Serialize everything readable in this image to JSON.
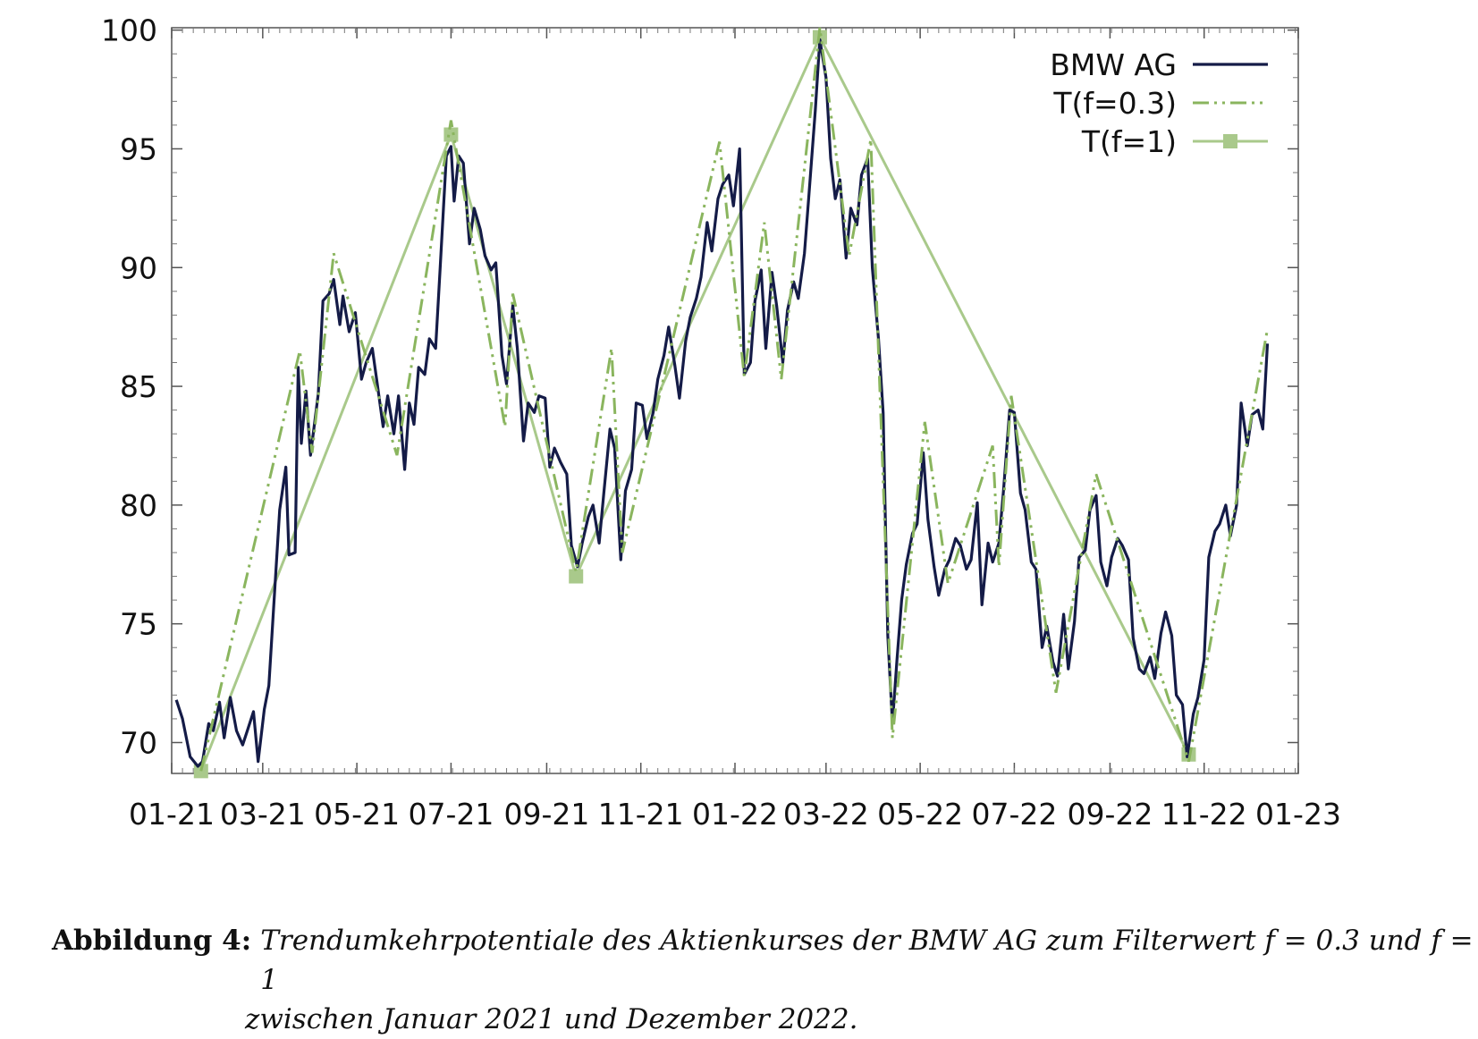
{
  "chart_data": {
    "type": "line",
    "title": "",
    "xlabel": "",
    "ylabel": "",
    "x_tick_labels": [
      "01-21",
      "03-21",
      "05-21",
      "07-21",
      "09-21",
      "11-21",
      "01-22",
      "03-22",
      "05-22",
      "07-22",
      "09-22",
      "11-22",
      "01-23"
    ],
    "x_range": [
      "2021-01-01",
      "2023-01-01"
    ],
    "y_ticks": [
      70,
      75,
      80,
      85,
      90,
      95,
      100
    ],
    "ylim": [
      68.7,
      100.1
    ],
    "grid": false,
    "legend_position": "top-right",
    "series": [
      {
        "name": "BMW AG",
        "color": "#141b47",
        "style": "solid",
        "points": [
          [
            "2021-01-04",
            71.8
          ],
          [
            "2021-01-08",
            71.0
          ],
          [
            "2021-01-13",
            69.4
          ],
          [
            "2021-01-18",
            69.0
          ],
          [
            "2021-01-21",
            69.2
          ],
          [
            "2021-01-25",
            70.8
          ],
          [
            "2021-01-28",
            70.5
          ],
          [
            "2021-02-01",
            71.7
          ],
          [
            "2021-02-04",
            70.2
          ],
          [
            "2021-02-08",
            71.9
          ],
          [
            "2021-02-12",
            70.5
          ],
          [
            "2021-02-16",
            69.9
          ],
          [
            "2021-02-19",
            70.5
          ],
          [
            "2021-02-23",
            71.3
          ],
          [
            "2021-02-26",
            69.2
          ],
          [
            "2021-03-02",
            71.4
          ],
          [
            "2021-03-05",
            72.4
          ],
          [
            "2021-03-08",
            75.6
          ],
          [
            "2021-03-12",
            79.8
          ],
          [
            "2021-03-16",
            81.6
          ],
          [
            "2021-03-18",
            77.9
          ],
          [
            "2021-03-22",
            78.0
          ],
          [
            "2021-03-24",
            85.8
          ],
          [
            "2021-03-26",
            82.6
          ],
          [
            "2021-03-29",
            84.8
          ],
          [
            "2021-04-01",
            82.1
          ],
          [
            "2021-04-06",
            84.7
          ],
          [
            "2021-04-09",
            88.6
          ],
          [
            "2021-04-13",
            88.9
          ],
          [
            "2021-04-16",
            89.5
          ],
          [
            "2021-04-20",
            87.6
          ],
          [
            "2021-04-22",
            88.8
          ],
          [
            "2021-04-26",
            87.3
          ],
          [
            "2021-04-30",
            88.1
          ],
          [
            "2021-05-04",
            85.3
          ],
          [
            "2021-05-07",
            86.0
          ],
          [
            "2021-05-11",
            86.6
          ],
          [
            "2021-05-14",
            85.2
          ],
          [
            "2021-05-18",
            83.3
          ],
          [
            "2021-05-21",
            84.6
          ],
          [
            "2021-05-25",
            83.0
          ],
          [
            "2021-05-28",
            84.6
          ],
          [
            "2021-06-01",
            81.5
          ],
          [
            "2021-06-04",
            84.3
          ],
          [
            "2021-06-07",
            83.4
          ],
          [
            "2021-06-10",
            85.8
          ],
          [
            "2021-06-14",
            85.5
          ],
          [
            "2021-06-17",
            87.0
          ],
          [
            "2021-06-21",
            86.6
          ],
          [
            "2021-06-24",
            90.0
          ],
          [
            "2021-06-28",
            94.7
          ],
          [
            "2021-07-01",
            95.1
          ],
          [
            "2021-07-03",
            92.8
          ],
          [
            "2021-07-06",
            94.7
          ],
          [
            "2021-07-09",
            94.4
          ],
          [
            "2021-07-13",
            91.0
          ],
          [
            "2021-07-16",
            92.5
          ],
          [
            "2021-07-20",
            91.6
          ],
          [
            "2021-07-23",
            90.5
          ],
          [
            "2021-07-27",
            89.9
          ],
          [
            "2021-07-30",
            90.2
          ],
          [
            "2021-08-03",
            86.3
          ],
          [
            "2021-08-06",
            85.1
          ],
          [
            "2021-08-10",
            88.4
          ],
          [
            "2021-08-13",
            86.6
          ],
          [
            "2021-08-17",
            82.7
          ],
          [
            "2021-08-20",
            84.3
          ],
          [
            "2021-08-24",
            83.9
          ],
          [
            "2021-08-27",
            84.6
          ],
          [
            "2021-08-31",
            84.5
          ],
          [
            "2021-09-03",
            81.6
          ],
          [
            "2021-09-06",
            82.4
          ],
          [
            "2021-09-10",
            81.8
          ],
          [
            "2021-09-14",
            81.3
          ],
          [
            "2021-09-17",
            78.3
          ],
          [
            "2021-09-21",
            77.4
          ],
          [
            "2021-09-24",
            78.4
          ],
          [
            "2021-09-28",
            79.5
          ],
          [
            "2021-10-01",
            80.0
          ],
          [
            "2021-10-05",
            78.4
          ],
          [
            "2021-10-08",
            80.5
          ],
          [
            "2021-10-12",
            83.2
          ],
          [
            "2021-10-15",
            82.4
          ],
          [
            "2021-10-19",
            77.7
          ],
          [
            "2021-10-22",
            80.6
          ],
          [
            "2021-10-26",
            81.5
          ],
          [
            "2021-10-29",
            84.3
          ],
          [
            "2021-11-02",
            84.2
          ],
          [
            "2021-11-05",
            82.8
          ],
          [
            "2021-11-09",
            83.9
          ],
          [
            "2021-11-12",
            85.3
          ],
          [
            "2021-11-16",
            86.3
          ],
          [
            "2021-11-19",
            87.5
          ],
          [
            "2021-11-23",
            85.9
          ],
          [
            "2021-11-26",
            84.5
          ],
          [
            "2021-11-30",
            86.9
          ],
          [
            "2021-12-03",
            87.9
          ],
          [
            "2021-12-07",
            88.7
          ],
          [
            "2021-12-10",
            89.6
          ],
          [
            "2021-12-14",
            91.9
          ],
          [
            "2021-12-17",
            90.7
          ],
          [
            "2021-12-21",
            92.9
          ],
          [
            "2021-12-24",
            93.5
          ],
          [
            "2021-12-28",
            93.9
          ],
          [
            "2021-12-31",
            92.6
          ],
          [
            "2022-01-04",
            95.0
          ],
          [
            "2022-01-07",
            85.5
          ],
          [
            "2022-01-11",
            86.0
          ],
          [
            "2022-01-14",
            88.6
          ],
          [
            "2022-01-18",
            89.9
          ],
          [
            "2022-01-21",
            86.6
          ],
          [
            "2022-01-25",
            89.8
          ],
          [
            "2022-01-28",
            88.4
          ],
          [
            "2022-02-01",
            86.0
          ],
          [
            "2022-02-04",
            88.2
          ],
          [
            "2022-02-08",
            89.4
          ],
          [
            "2022-02-11",
            88.7
          ],
          [
            "2022-02-15",
            90.6
          ],
          [
            "2022-02-18",
            93.1
          ],
          [
            "2022-02-22",
            96.6
          ],
          [
            "2022-02-25",
            99.6
          ],
          [
            "2022-03-01",
            98.0
          ],
          [
            "2022-03-04",
            94.6
          ],
          [
            "2022-03-07",
            92.9
          ],
          [
            "2022-03-10",
            93.7
          ],
          [
            "2022-03-14",
            90.4
          ],
          [
            "2022-03-17",
            92.5
          ],
          [
            "2022-03-21",
            91.8
          ],
          [
            "2022-03-24",
            93.9
          ],
          [
            "2022-03-28",
            94.6
          ],
          [
            "2022-03-31",
            90.0
          ],
          [
            "2022-04-04",
            87.0
          ],
          [
            "2022-04-07",
            83.9
          ],
          [
            "2022-04-10",
            74.5
          ],
          [
            "2022-04-13",
            70.8
          ],
          [
            "2022-04-16",
            73.5
          ],
          [
            "2022-04-19",
            76.0
          ],
          [
            "2022-04-22",
            77.5
          ],
          [
            "2022-04-26",
            78.8
          ],
          [
            "2022-04-29",
            79.2
          ],
          [
            "2022-05-03",
            82.2
          ],
          [
            "2022-05-06",
            79.4
          ],
          [
            "2022-05-10",
            77.4
          ],
          [
            "2022-05-13",
            76.2
          ],
          [
            "2022-05-17",
            77.3
          ],
          [
            "2022-05-20",
            77.7
          ],
          [
            "2022-05-24",
            78.6
          ],
          [
            "2022-05-27",
            78.3
          ],
          [
            "2022-05-31",
            77.3
          ],
          [
            "2022-06-03",
            77.7
          ],
          [
            "2022-06-07",
            80.1
          ],
          [
            "2022-06-10",
            75.8
          ],
          [
            "2022-06-14",
            78.4
          ],
          [
            "2022-06-17",
            77.6
          ],
          [
            "2022-06-21",
            78.4
          ],
          [
            "2022-06-24",
            80.6
          ],
          [
            "2022-06-28",
            84.0
          ],
          [
            "2022-07-01",
            83.9
          ],
          [
            "2022-07-05",
            80.5
          ],
          [
            "2022-07-08",
            79.8
          ],
          [
            "2022-07-12",
            77.6
          ],
          [
            "2022-07-15",
            77.3
          ],
          [
            "2022-07-19",
            74.0
          ],
          [
            "2022-07-22",
            74.9
          ],
          [
            "2022-07-26",
            73.4
          ],
          [
            "2022-07-29",
            72.8
          ],
          [
            "2022-08-02",
            75.4
          ],
          [
            "2022-08-05",
            73.1
          ],
          [
            "2022-08-09",
            75.1
          ],
          [
            "2022-08-12",
            77.8
          ],
          [
            "2022-08-16",
            78.1
          ],
          [
            "2022-08-19",
            79.8
          ],
          [
            "2022-08-23",
            80.4
          ],
          [
            "2022-08-26",
            77.6
          ],
          [
            "2022-08-30",
            76.6
          ],
          [
            "2022-09-02",
            77.8
          ],
          [
            "2022-09-06",
            78.6
          ],
          [
            "2022-09-09",
            78.3
          ],
          [
            "2022-09-13",
            77.7
          ],
          [
            "2022-09-16",
            74.4
          ],
          [
            "2022-09-20",
            73.1
          ],
          [
            "2022-09-23",
            72.9
          ],
          [
            "2022-09-27",
            73.6
          ],
          [
            "2022-09-30",
            72.7
          ],
          [
            "2022-10-04",
            74.6
          ],
          [
            "2022-10-07",
            75.5
          ],
          [
            "2022-10-11",
            74.5
          ],
          [
            "2022-10-14",
            72.0
          ],
          [
            "2022-10-18",
            71.6
          ],
          [
            "2022-10-21",
            69.4
          ],
          [
            "2022-10-25",
            71.2
          ],
          [
            "2022-10-28",
            71.9
          ],
          [
            "2022-11-01",
            73.5
          ],
          [
            "2022-11-04",
            77.8
          ],
          [
            "2022-11-08",
            78.9
          ],
          [
            "2022-11-11",
            79.2
          ],
          [
            "2022-11-15",
            80.0
          ],
          [
            "2022-11-18",
            78.7
          ],
          [
            "2022-11-22",
            80.0
          ],
          [
            "2022-11-25",
            84.3
          ],
          [
            "2022-11-29",
            82.5
          ],
          [
            "2022-12-02",
            83.8
          ],
          [
            "2022-12-06",
            84.0
          ],
          [
            "2022-12-09",
            83.2
          ],
          [
            "2022-12-12",
            86.8
          ]
        ]
      },
      {
        "name": "T(f=0.3)",
        "color": "#8ab55e",
        "style": "dash-dot-dot",
        "points": [
          [
            "2021-01-20",
            68.8
          ],
          [
            "2021-03-25",
            86.5
          ],
          [
            "2021-04-02",
            82.2
          ],
          [
            "2021-04-16",
            90.6
          ],
          [
            "2021-05-27",
            82.1
          ],
          [
            "2021-07-01",
            96.2
          ],
          [
            "2021-08-05",
            83.3
          ],
          [
            "2021-08-10",
            88.9
          ],
          [
            "2021-09-20",
            77.2
          ],
          [
            "2021-10-13",
            86.6
          ],
          [
            "2021-10-20",
            78.0
          ],
          [
            "2021-12-22",
            95.3
          ],
          [
            "2022-01-07",
            85.4
          ],
          [
            "2022-01-20",
            91.9
          ],
          [
            "2022-01-31",
            85.3
          ],
          [
            "2022-02-25",
            100.1
          ],
          [
            "2022-03-16",
            90.5
          ],
          [
            "2022-03-30",
            95.4
          ],
          [
            "2022-04-13",
            70.2
          ],
          [
            "2022-05-04",
            83.5
          ],
          [
            "2022-05-19",
            76.7
          ],
          [
            "2022-06-17",
            82.5
          ],
          [
            "2022-06-21",
            77.4
          ],
          [
            "2022-06-29",
            84.6
          ],
          [
            "2022-07-28",
            72.1
          ],
          [
            "2022-08-23",
            81.3
          ],
          [
            "2022-10-22",
            69.2
          ],
          [
            "2022-12-12",
            87.4
          ]
        ]
      },
      {
        "name": "T(f=1)",
        "color": "#a9c98b",
        "style": "solid-square-markers",
        "points": [
          [
            "2021-01-20",
            68.8
          ],
          [
            "2021-07-01",
            95.6
          ],
          [
            "2021-09-20",
            77.0
          ],
          [
            "2022-02-25",
            99.7
          ],
          [
            "2022-10-22",
            69.5
          ]
        ]
      }
    ]
  },
  "caption": {
    "label": "Abbildung 4:",
    "line1": "Trendumkehrpotentiale des Aktienkurses der BMW AG zum Filterwert f = 0.3 und f = 1",
    "line2": "zwischen Januar 2021 und Dezember 2022."
  }
}
